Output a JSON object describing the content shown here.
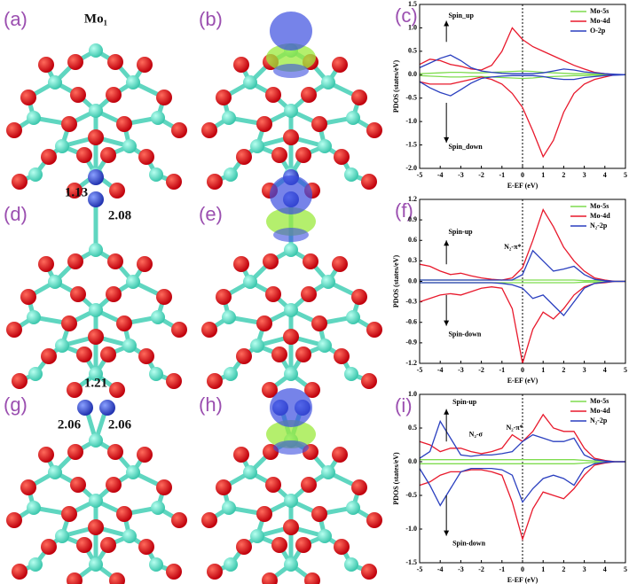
{
  "structures": [
    {
      "label": "(a)",
      "annotations": [
        "Mo₁"
      ]
    },
    {
      "label": "(b)",
      "annotations": []
    },
    {
      "label": "(d)",
      "annotations": [
        "1.13",
        "2.08"
      ]
    },
    {
      "label": "(e)",
      "annotations": []
    },
    {
      "label": "(g)",
      "annotations": [
        "1.21",
        "2.06",
        "2.06"
      ]
    },
    {
      "label": "(h)",
      "annotations": []
    }
  ],
  "chart_data": [
    {
      "type": "line",
      "panel": "(c)",
      "xlabel": "E-EF (eV)",
      "ylabel": "PDOS (states/eV)",
      "x": [
        -5,
        -4.5,
        -4,
        -3.5,
        -3,
        -2.5,
        -2,
        -1.5,
        -1,
        -0.5,
        0,
        0.5,
        1,
        1.5,
        2,
        2.5,
        3,
        3.5,
        4,
        4.5,
        5
      ],
      "xlim": [
        -5,
        5
      ],
      "xticks": [
        -5,
        -4,
        -3,
        -2,
        -1,
        0,
        1,
        2,
        3,
        4,
        5
      ],
      "ylim": [
        -2,
        1.5
      ],
      "yticks": [
        {
          "value": -2,
          "label": "-2.0"
        },
        -1.5,
        {
          "value": -1,
          "label": "-1.0"
        },
        -0.5,
        {
          "value": 0,
          "label": "0.0"
        },
        0.5,
        {
          "value": 1,
          "label": "1.0"
        },
        1.5
      ],
      "annotations": [
        "Spin_up",
        "Spin_down"
      ],
      "series": [
        {
          "name": "Mo-5s",
          "color": "#7fdc4f",
          "values": [
            0.02,
            0.03,
            0.04,
            0.05,
            0.05,
            0.04,
            0.04,
            0.05,
            0.06,
            0.07,
            0.08,
            0.07,
            0.05,
            0.04,
            0.03,
            0.02,
            0.02,
            0.01,
            0.01,
            0,
            0
          ],
          "values_down": [
            -0.02,
            -0.03,
            -0.04,
            -0.05,
            -0.05,
            -0.04,
            -0.04,
            -0.05,
            -0.06,
            -0.07,
            -0.08,
            -0.07,
            -0.05,
            -0.04,
            -0.03,
            -0.02,
            -0.02,
            -0.01,
            -0.01,
            0,
            0
          ]
        },
        {
          "name": "Mo-4d",
          "color": "#e8192c",
          "values": [
            0.22,
            0.33,
            0.3,
            0.22,
            0.18,
            0.12,
            0.1,
            0.2,
            0.5,
            1.0,
            0.75,
            0.6,
            0.5,
            0.4,
            0.3,
            0.2,
            0.12,
            0.05,
            0.02,
            0,
            0
          ],
          "values_down": [
            -0.15,
            -0.2,
            -0.2,
            -0.2,
            -0.15,
            -0.1,
            -0.05,
            -0.1,
            -0.2,
            -0.4,
            -0.7,
            -1.2,
            -1.75,
            -1.4,
            -0.8,
            -0.4,
            -0.2,
            -0.1,
            -0.05,
            0,
            0
          ]
        },
        {
          "name": "O-2p",
          "color": "#2a3fbf",
          "values": [
            0.15,
            0.25,
            0.35,
            0.42,
            0.3,
            0.15,
            0.08,
            0.05,
            0.03,
            0.02,
            0.02,
            0.02,
            0.04,
            0.08,
            0.12,
            0.1,
            0.06,
            0.04,
            0.02,
            0.01,
            0
          ],
          "values_down": [
            -0.15,
            -0.28,
            -0.38,
            -0.45,
            -0.32,
            -0.18,
            -0.08,
            -0.05,
            -0.03,
            -0.02,
            -0.02,
            -0.02,
            -0.04,
            -0.08,
            -0.1,
            -0.1,
            -0.06,
            -0.04,
            -0.02,
            -0.01,
            0
          ]
        }
      ]
    },
    {
      "type": "line",
      "panel": "(f)",
      "xlabel": "E-EF (eV)",
      "ylabel": "PDOS (states/eV)",
      "x": [
        -5,
        -4.5,
        -4,
        -3.5,
        -3,
        -2.5,
        -2,
        -1.5,
        -1,
        -0.5,
        0,
        0.5,
        1,
        1.5,
        2,
        2.5,
        3,
        3.5,
        4,
        4.5,
        5
      ],
      "xlim": [
        -5,
        5
      ],
      "xticks": [
        -5,
        -4,
        -3,
        -2,
        -1,
        0,
        1,
        2,
        3,
        4,
        5
      ],
      "ylim": [
        -1.2,
        1.2
      ],
      "yticks": [
        -1.2,
        -0.9,
        -0.6,
        -0.3,
        {
          "value": 0,
          "label": "0.0"
        },
        0.3,
        0.6,
        0.9,
        1.2
      ],
      "annotations": [
        "Spin-up",
        "Spin-down",
        "N₂-π*"
      ],
      "series": [
        {
          "name": "Mo-5s",
          "color": "#7fdc4f",
          "values": [
            0.02,
            0.02,
            0.02,
            0.02,
            0.02,
            0.02,
            0.02,
            0.02,
            0.02,
            0.02,
            0.02,
            0.02,
            0.02,
            0.02,
            0.02,
            0.02,
            0.01,
            0.01,
            0.01,
            0,
            0
          ],
          "values_down": [
            -0.02,
            -0.02,
            -0.02,
            -0.02,
            -0.02,
            -0.02,
            -0.02,
            -0.02,
            -0.02,
            -0.02,
            -0.02,
            -0.02,
            -0.02,
            -0.02,
            -0.02,
            -0.02,
            -0.01,
            -0.01,
            -0.01,
            0,
            0
          ]
        },
        {
          "name": "Mo-4d",
          "color": "#e8192c",
          "values": [
            0.25,
            0.22,
            0.15,
            0.1,
            0.12,
            0.08,
            0.05,
            0.03,
            0.02,
            0.05,
            0.2,
            0.6,
            1.05,
            0.8,
            0.5,
            0.3,
            0.15,
            0.05,
            0.02,
            0,
            0
          ],
          "values_down": [
            -0.3,
            -0.25,
            -0.2,
            -0.18,
            -0.2,
            -0.15,
            -0.1,
            -0.08,
            -0.1,
            -0.4,
            -1.2,
            -0.7,
            -0.45,
            -0.55,
            -0.4,
            -0.2,
            -0.08,
            -0.03,
            -0.02,
            0,
            0
          ]
        },
        {
          "name": "N₂-2p",
          "color": "#2a3fbf",
          "values": [
            0.02,
            0.02,
            0.02,
            0.02,
            0.02,
            0.02,
            0.02,
            0.02,
            0.02,
            0.02,
            0.1,
            0.45,
            0.3,
            0.15,
            0.18,
            0.22,
            0.1,
            0.03,
            0.01,
            0,
            0
          ],
          "values_down": [
            -0.02,
            -0.02,
            -0.02,
            -0.02,
            -0.02,
            -0.02,
            -0.02,
            -0.02,
            -0.03,
            -0.05,
            -0.1,
            -0.25,
            -0.2,
            -0.35,
            -0.5,
            -0.3,
            -0.1,
            -0.03,
            -0.01,
            0,
            0
          ]
        }
      ]
    },
    {
      "type": "line",
      "panel": "(i)",
      "xlabel": "E-EF (eV)",
      "ylabel": "PDOS (states/eV)",
      "x": [
        -5,
        -4.5,
        -4,
        -3.5,
        -3,
        -2.5,
        -2,
        -1.5,
        -1,
        -0.5,
        0,
        0.5,
        1,
        1.5,
        2,
        2.5,
        3,
        3.5,
        4,
        4.5,
        5
      ],
      "xlim": [
        -5,
        5
      ],
      "xticks": [
        -5,
        -4,
        -3,
        -2,
        -1,
        0,
        1,
        2,
        3,
        4,
        5
      ],
      "ylim": [
        -1.5,
        1.0
      ],
      "yticks": [
        -1.5,
        {
          "value": -1,
          "label": "-1.0"
        },
        -0.5,
        {
          "value": 0,
          "label": "0.0"
        },
        0.5,
        {
          "value": 1,
          "label": "1.0"
        }
      ],
      "annotations": [
        "Spin-up",
        "Spin-down",
        "N₂-σ",
        "N₂-π*"
      ],
      "series": [
        {
          "name": "Mo-5s",
          "color": "#7fdc4f",
          "values": [
            0.03,
            0.03,
            0.03,
            0.03,
            0.03,
            0.03,
            0.03,
            0.03,
            0.03,
            0.03,
            0.03,
            0.03,
            0.03,
            0.03,
            0.03,
            0.03,
            0.02,
            0.01,
            0.01,
            0,
            0
          ],
          "values_down": [
            -0.03,
            -0.03,
            -0.03,
            -0.03,
            -0.03,
            -0.03,
            -0.03,
            -0.03,
            -0.03,
            -0.03,
            -0.03,
            -0.03,
            -0.03,
            -0.03,
            -0.03,
            -0.03,
            -0.02,
            -0.01,
            -0.01,
            0,
            0
          ]
        },
        {
          "name": "Mo-4d",
          "color": "#e8192c",
          "values": [
            0.3,
            0.25,
            0.15,
            0.2,
            0.2,
            0.15,
            0.12,
            0.15,
            0.2,
            0.4,
            0.3,
            0.45,
            0.7,
            0.5,
            0.45,
            0.45,
            0.2,
            0.05,
            0.02,
            0,
            0
          ],
          "values_down": [
            -0.35,
            -0.3,
            -0.2,
            -0.15,
            -0.15,
            -0.12,
            -0.12,
            -0.15,
            -0.2,
            -0.6,
            -1.15,
            -0.7,
            -0.45,
            -0.5,
            -0.55,
            -0.4,
            -0.2,
            -0.05,
            -0.02,
            0,
            0
          ]
        },
        {
          "name": "N₂-2p",
          "color": "#2a3fbf",
          "values": [
            0.05,
            0.15,
            0.6,
            0.35,
            0.1,
            0.08,
            0.1,
            0.1,
            0.12,
            0.15,
            0.3,
            0.4,
            0.35,
            0.3,
            0.3,
            0.35,
            0.1,
            0.03,
            0.01,
            0,
            0
          ],
          "values_down": [
            -0.1,
            -0.35,
            -0.65,
            -0.4,
            -0.15,
            -0.1,
            -0.1,
            -0.1,
            -0.12,
            -0.2,
            -0.6,
            -0.4,
            -0.25,
            -0.2,
            -0.25,
            -0.35,
            -0.1,
            -0.03,
            -0.01,
            0,
            0
          ]
        }
      ]
    }
  ]
}
